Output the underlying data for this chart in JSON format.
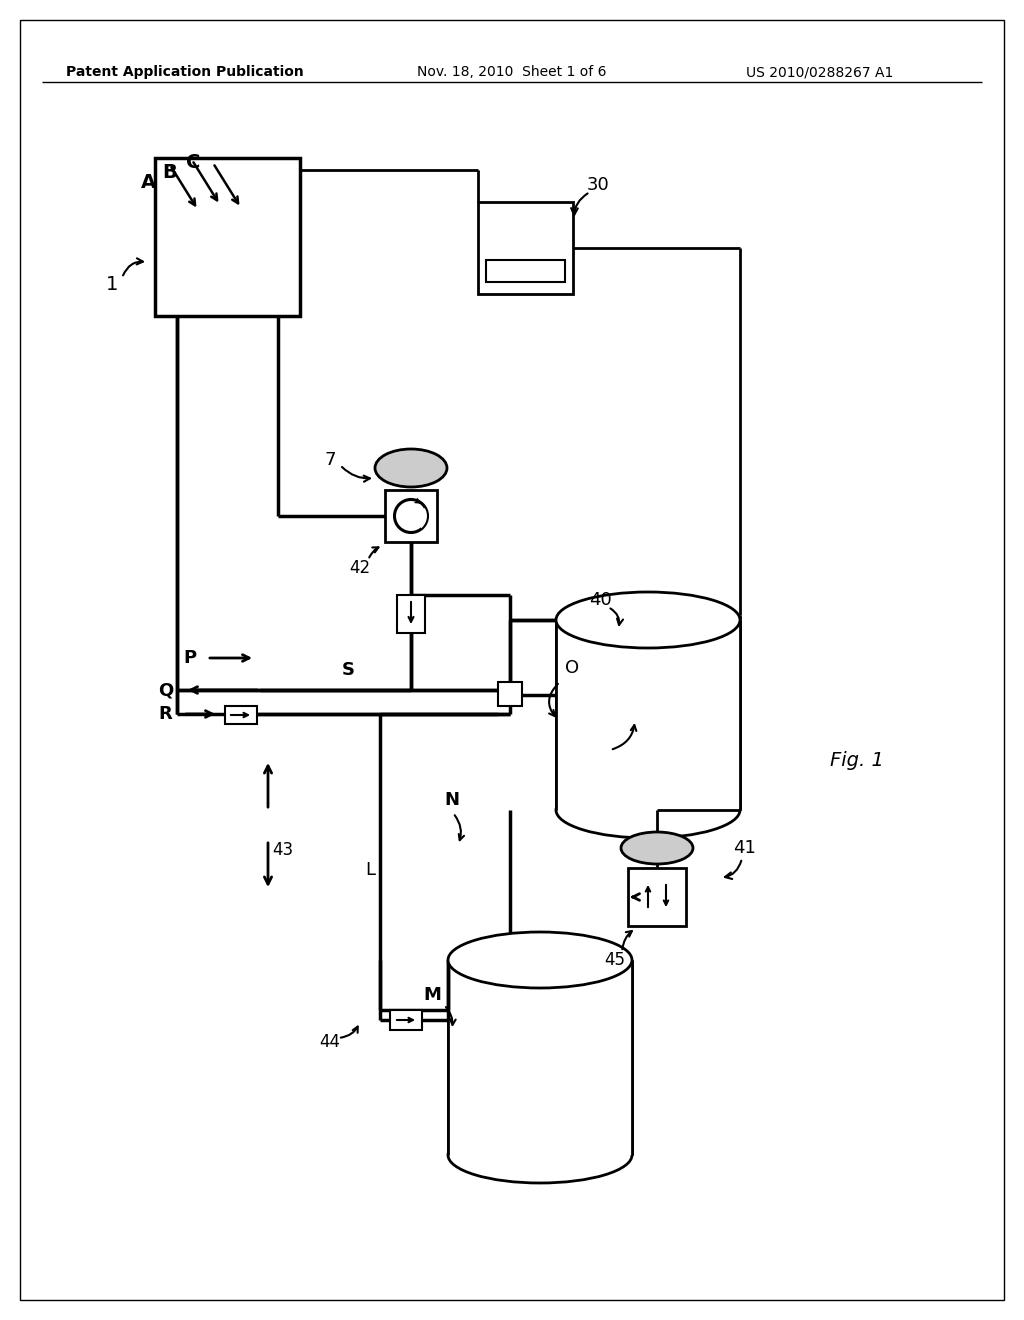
{
  "header_left": "Patent Application Publication",
  "header_mid": "Nov. 18, 2010  Sheet 1 of 6",
  "header_right": "US 2010/0288267 A1",
  "fig_label": "Fig. 1",
  "bg_color": "#ffffff"
}
